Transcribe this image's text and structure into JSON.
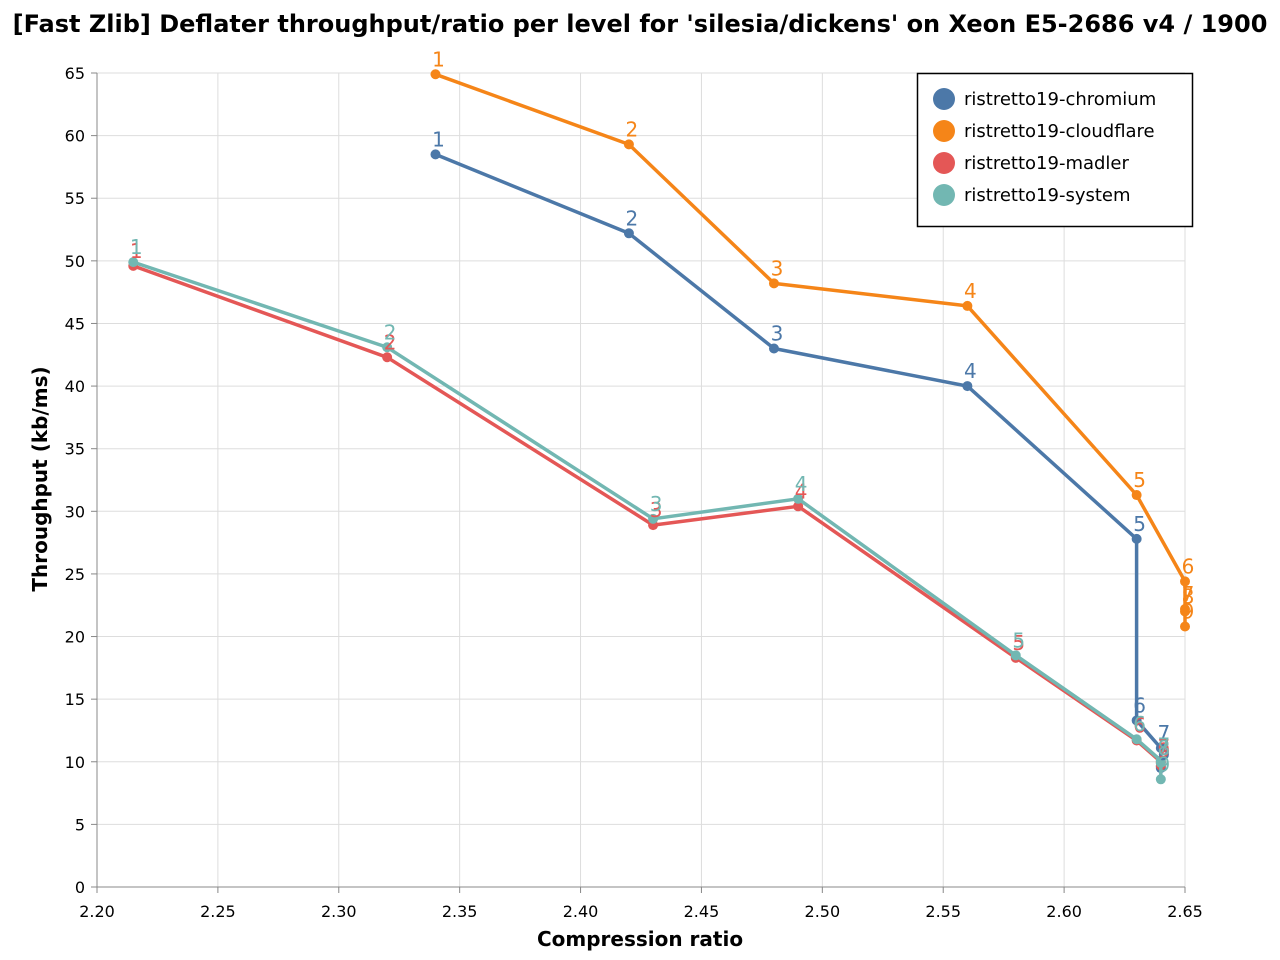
{
  "chart_data": {
    "type": "line",
    "title": "[Fast Zlib] Deflater throughput/ratio per level for 'silesia/dickens' on Xeon E5-2686 v4 / 1900",
    "xlabel": "Compression ratio",
    "ylabel": "Throughput (kb/ms)",
    "xlim": [
      2.2,
      2.65
    ],
    "ylim": [
      0,
      65
    ],
    "x_ticks": [
      "2.20",
      "2.25",
      "2.30",
      "2.35",
      "2.40",
      "2.45",
      "2.50",
      "2.55",
      "2.60",
      "2.65"
    ],
    "y_ticks": [
      "0",
      "5",
      "10",
      "15",
      "20",
      "25",
      "30",
      "35",
      "40",
      "45",
      "50",
      "55",
      "60",
      "65"
    ],
    "grid": true,
    "legend_position": "top-right",
    "series": [
      {
        "name": "ristretto19-chromium",
        "color": "#4c78a8",
        "points": [
          {
            "label": "1",
            "x": 2.34,
            "y": 58.5
          },
          {
            "label": "2",
            "x": 2.42,
            "y": 52.2
          },
          {
            "label": "3",
            "x": 2.48,
            "y": 43.0
          },
          {
            "label": "4",
            "x": 2.56,
            "y": 40.0
          },
          {
            "label": "5",
            "x": 2.63,
            "y": 27.8
          },
          {
            "label": "6",
            "x": 2.63,
            "y": 13.3
          },
          {
            "label": "7",
            "x": 2.64,
            "y": 11.1
          },
          {
            "label": "8",
            "x": 2.64,
            "y": 9.6
          },
          {
            "label": "9",
            "x": 2.64,
            "y": 9.5
          }
        ]
      },
      {
        "name": "ristretto19-cloudflare",
        "color": "#f58518",
        "points": [
          {
            "label": "1",
            "x": 2.34,
            "y": 64.9
          },
          {
            "label": "2",
            "x": 2.42,
            "y": 59.3
          },
          {
            "label": "3",
            "x": 2.48,
            "y": 48.2
          },
          {
            "label": "4",
            "x": 2.56,
            "y": 46.4
          },
          {
            "label": "5",
            "x": 2.63,
            "y": 31.3
          },
          {
            "label": "6",
            "x": 2.65,
            "y": 24.4
          },
          {
            "label": "7",
            "x": 2.65,
            "y": 22.2
          },
          {
            "label": "8",
            "x": 2.65,
            "y": 22.0
          },
          {
            "label": "9",
            "x": 2.65,
            "y": 20.8
          }
        ]
      },
      {
        "name": "ristretto19-madler",
        "color": "#e45756",
        "points": [
          {
            "label": "1",
            "x": 2.215,
            "y": 49.6
          },
          {
            "label": "2",
            "x": 2.32,
            "y": 42.3
          },
          {
            "label": "3",
            "x": 2.43,
            "y": 28.9
          },
          {
            "label": "4",
            "x": 2.49,
            "y": 30.4
          },
          {
            "label": "5",
            "x": 2.58,
            "y": 18.3
          },
          {
            "label": "6",
            "x": 2.63,
            "y": 11.7
          },
          {
            "label": "7",
            "x": 2.64,
            "y": 10.0
          },
          {
            "label": "8",
            "x": 2.64,
            "y": 9.9
          },
          {
            "label": "9",
            "x": 2.64,
            "y": 9.7
          }
        ]
      },
      {
        "name": "ristretto19-system",
        "color": "#72b7b2",
        "points": [
          {
            "label": "1",
            "x": 2.215,
            "y": 49.9
          },
          {
            "label": "2",
            "x": 2.32,
            "y": 43.1
          },
          {
            "label": "3",
            "x": 2.43,
            "y": 29.4
          },
          {
            "label": "4",
            "x": 2.49,
            "y": 31.0
          },
          {
            "label": "5",
            "x": 2.58,
            "y": 18.5
          },
          {
            "label": "6",
            "x": 2.63,
            "y": 11.8
          },
          {
            "label": "7",
            "x": 2.64,
            "y": 10.1
          },
          {
            "label": "8",
            "x": 2.64,
            "y": 9.9
          },
          {
            "label": "9",
            "x": 2.64,
            "y": 8.6
          }
        ]
      }
    ]
  }
}
